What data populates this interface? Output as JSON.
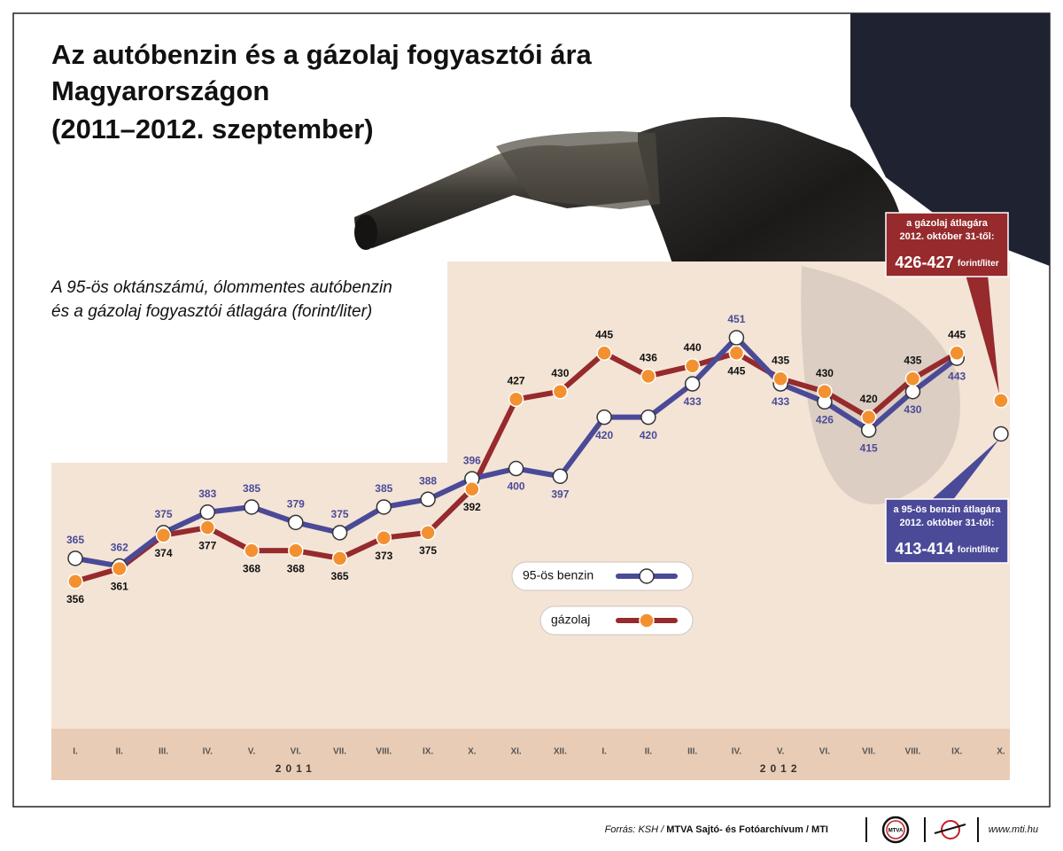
{
  "chart_data": {
    "type": "line",
    "title": [
      "Az autóbenzin és a gázolaj fogyasztói ára",
      "Magyarországon",
      "(2011–2012. szeptember)"
    ],
    "subtitle": [
      "A 95-ös oktánszámú, ólommentes autóbenzin",
      "és a gázolaj fogyasztói átlagára (forint/liter)"
    ],
    "categories": [
      "I.",
      "II.",
      "III.",
      "IV.",
      "V.",
      "VI.",
      "VII.",
      "VIII.",
      "IX.",
      "X.",
      "XI.",
      "XII.",
      "I.",
      "II.",
      "III.",
      "IV.",
      "V.",
      "VI.",
      "VII.",
      "VIII.",
      "IX.",
      "X."
    ],
    "year_groups": [
      "2011",
      "2012"
    ],
    "ylim": [
      300,
      480
    ],
    "series": [
      {
        "name": "95-ös benzin",
        "color": "#4b4a98",
        "marker_color": "#ffffff",
        "label_color": "#4b4a98",
        "values": [
          365,
          362,
          375,
          383,
          385,
          379,
          375,
          385,
          388,
          396,
          400,
          397,
          420,
          420,
          433,
          451,
          433,
          426,
          415,
          430,
          443,
          null
        ],
        "forecast": {
          "value": 413.5,
          "lines": [
            "a 95-ös benzin átlagára",
            "2012. október 31-től:"
          ],
          "range": "413-414",
          "unit": "forint/liter"
        }
      },
      {
        "name": "gázolaj",
        "color": "#962a2c",
        "marker_color": "#f39131",
        "label_color": "#111111",
        "values": [
          356,
          361,
          374,
          377,
          368,
          368,
          365,
          373,
          375,
          392,
          427,
          430,
          445,
          436,
          440,
          445,
          435,
          430,
          420,
          435,
          445,
          null
        ],
        "forecast": {
          "value": 426.5,
          "lines": [
            "a gázolaj átlagára",
            "2012. október 31-től:"
          ],
          "range": "426-427",
          "unit": "forint/liter"
        }
      }
    ]
  },
  "footer": {
    "source": "Forrás: KSH /",
    "agency": "MTVA Sajtó- és Fotóarchívum / MTI",
    "logo": "MTVA",
    "url": "www.mti.hu"
  }
}
